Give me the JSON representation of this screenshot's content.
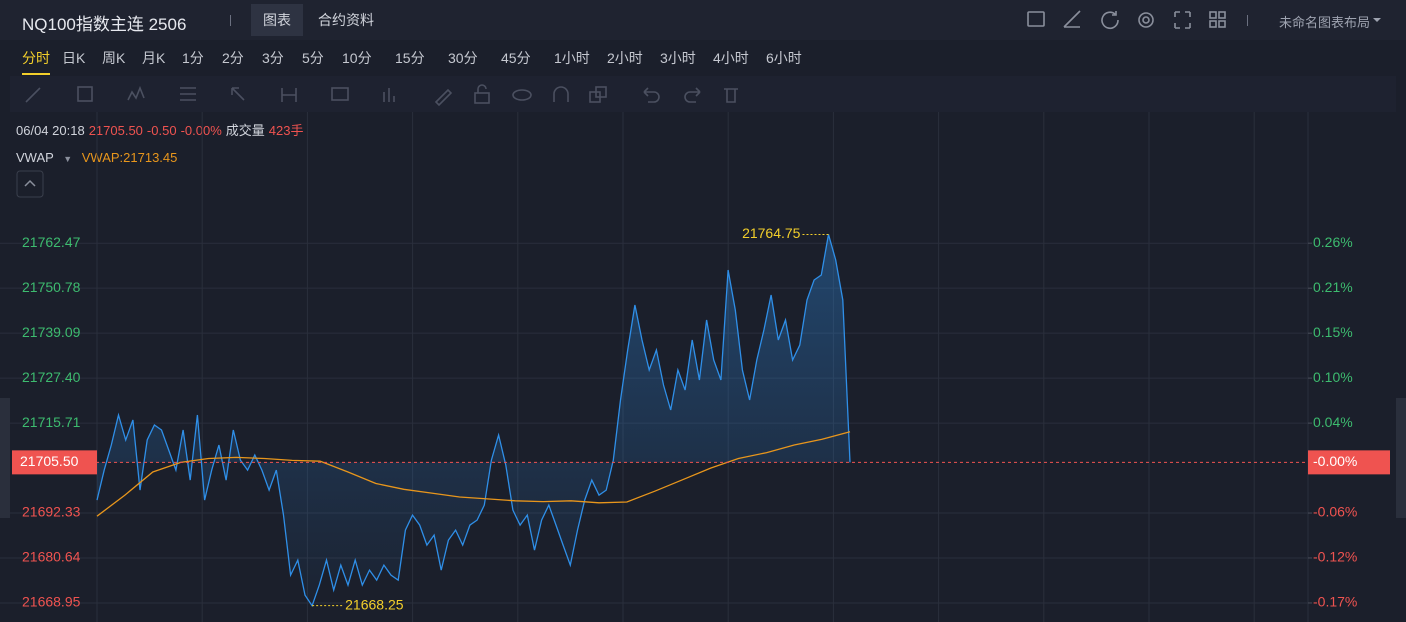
{
  "header": {
    "title": "NQ100指数主连 2506",
    "tabs": [
      "图表",
      "合约资料"
    ],
    "layout_name": "未命名图表布局"
  },
  "timeframes": [
    "分时",
    "日K",
    "周K",
    "月K",
    "1分",
    "2分",
    "3分",
    "5分",
    "10分",
    "15分",
    "30分",
    "45分",
    "1小时",
    "2小时",
    "3小时",
    "4小时",
    "6小时"
  ],
  "info": {
    "time": "06/04 20:18",
    "price": "21705.50",
    "change": "-0.50",
    "change_pct": "-0.00%",
    "volume_label": "成交量",
    "volume": "423手"
  },
  "chart_data": {
    "type": "line",
    "ylim": [
      21664,
      21788
    ],
    "yticks": [
      21762.47,
      21750.78,
      21739.09,
      {
        "value": 21727.4,
        "label": "21727.40"
      },
      21715.71,
      21692.33,
      21680.64,
      21668.95
    ],
    "y2lim": [
      -0.1935,
      0.3778
    ],
    "y2ticks": [
      {
        "value": 0.2602,
        "label": "0.26%"
      },
      {
        "value": 0.2063,
        "label": "0.21%"
      },
      {
        "value": 0.1524,
        "label": "0.15%"
      },
      {
        "value": 0.0986,
        "label": "0.10%"
      },
      {
        "value": 0.0447,
        "label": "0.04%"
      },
      {
        "value": -0.063,
        "label": "-0.06%"
      },
      {
        "value": -0.1168,
        "label": "-0.12%"
      },
      {
        "value": -0.1707,
        "label": "-0.17%"
      }
    ],
    "grid": true,
    "up_color": "#3dbb6f",
    "down_color": "#ef5350",
    "last_price": {
      "value": 21705.5,
      "label": "21705.50"
    },
    "last_change_pct": {
      "value": -0.0023,
      "label": "-0.00%"
    },
    "series": [
      {
        "color": "#2f8fe8",
        "area": true,
        "values": [
          21695.7,
          21703.5,
          21710.0,
          21717.8,
          21711.3,
          21716.5,
          21698.3,
          21711.3,
          21715.2,
          21713.9,
          21708.7,
          21703.5,
          21713.9,
          21700.9,
          21717.8,
          21695.7,
          21703.5,
          21710.0,
          21700.9,
          21713.9,
          21706.1,
          21703.5,
          21707.4,
          21703.5,
          21698.3,
          21703.5,
          21691.8,
          21676.2,
          21680.1,
          21671.0,
          21668.25,
          21673.6,
          21680.1,
          21672.3,
          21678.8,
          21673.6,
          21680.1,
          21673.6,
          21677.5,
          21674.9,
          21678.8,
          21676.2,
          21674.9,
          21687.9,
          21691.8,
          21689.2,
          21684.0,
          21686.6,
          21677.5,
          21685.3,
          21687.9,
          21684.0,
          21689.2,
          21690.5,
          21694.4,
          21706.1,
          21712.6,
          21704.8,
          21693.1,
          21689.2,
          21691.8,
          21682.7,
          21690.5,
          21694.4,
          21689.2,
          21684.0,
          21678.8,
          21687.9,
          21695.7,
          21700.9,
          21697.0,
          21698.3,
          21706.1,
          21721.7,
          21734.7,
          21746.4,
          21737.3,
          21729.5,
          21734.7,
          21725.6,
          21719.1,
          21729.5,
          21724.3,
          21737.3,
          21726.9,
          21742.5,
          21732.1,
          21726.9,
          21755.5,
          21745.1,
          21729.5,
          21721.7,
          21732.1,
          21739.9,
          21749.0,
          21737.3,
          21742.5,
          21732.1,
          21736.0,
          21747.7,
          21752.9,
          21754.2,
          21764.75,
          21758.1,
          21747.7,
          21705.5
        ]
      },
      {
        "name": "VWAP",
        "legend_label": "VWAP:21713.45",
        "color": "#e8961c",
        "values": [
          21691.5,
          21697,
          21703,
          21705.5,
          21706.5,
          21706.8,
          21706.5,
          21706,
          21705.8,
          21703,
          21700,
          21698.5,
          21697.5,
          21696.5,
          21696,
          21695.5,
          21695.3,
          21695.5,
          21695,
          21695.2,
          21698,
          21701,
          21704,
          21706.5,
          21708,
          21710,
          21711.5,
          21713.45
        ]
      }
    ],
    "annotations": [
      {
        "value": 21764.75,
        "label": "21764.75",
        "color": "#f3cf2b"
      },
      {
        "value": 21668.25,
        "label": "21668.25",
        "color": "#f3cf2b"
      }
    ]
  }
}
